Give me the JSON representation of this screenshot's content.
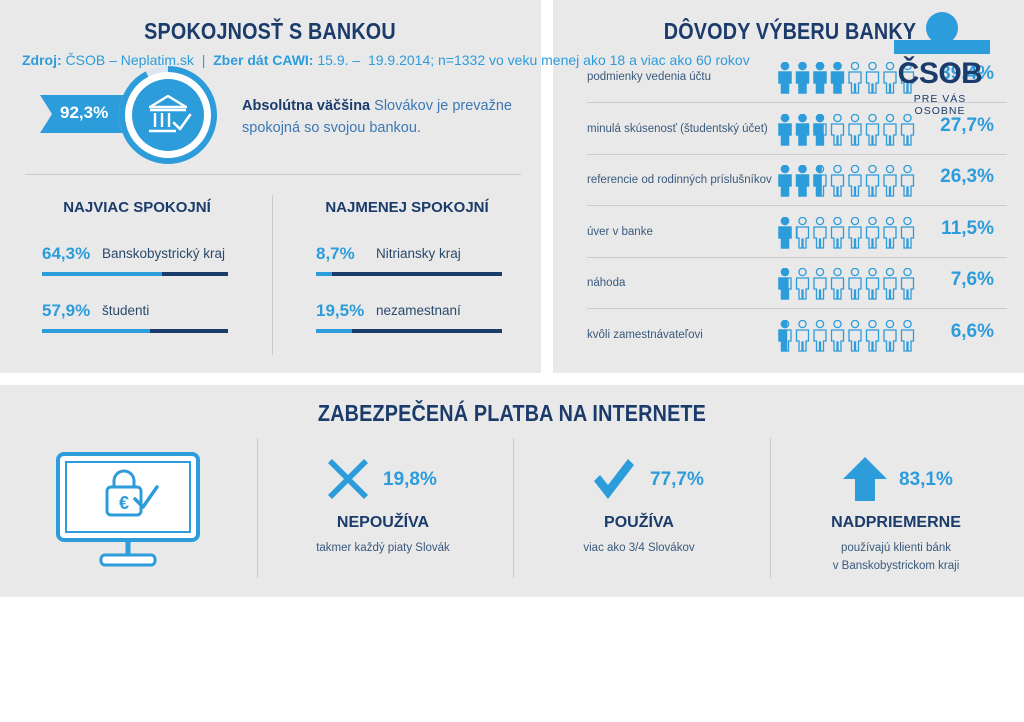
{
  "satisfaction": {
    "title": "SPOKOJNOSŤ S BANKOU",
    "overall_pct": "92,3%",
    "overall_value": 92.3,
    "desc_bold": "Absolútna väčšina",
    "desc_line1": " Slovákov je prevažne",
    "desc_line2": "spokojná so svojou bankou.",
    "most": {
      "title": "NAJVIAC SPOKOJNÍ",
      "items": [
        {
          "pct": "64,3%",
          "value": 64.3,
          "label": "Banskobystrický kraj"
        },
        {
          "pct": "57,9%",
          "value": 57.9,
          "label": "študenti"
        }
      ]
    },
    "least": {
      "title": "NAJMENEJ SPOKOJNÍ",
      "items": [
        {
          "pct": "8,7%",
          "value": 8.7,
          "label": "Nitriansky kraj"
        },
        {
          "pct": "19,5%",
          "value": 19.5,
          "label": "nezamestnaní"
        }
      ]
    }
  },
  "reasons": {
    "title": "DÔVODY VÝBERU BANKY",
    "items": [
      {
        "label": "podmienky vedenia účtu",
        "pct": "39,4%",
        "value": 39.4
      },
      {
        "label": "minulá skúsenosť (študentský účet)",
        "pct": "27,7%",
        "value": 27.7
      },
      {
        "label": "referencie od rodinných príslušníkov",
        "pct": "26,3%",
        "value": 26.3
      },
      {
        "label": "úver v banke",
        "pct": "11,5%",
        "value": 11.5
      },
      {
        "label": "náhoda",
        "pct": "7,6%",
        "value": 7.6
      },
      {
        "label": "kvôli zamestnávateľovi",
        "pct": "6,6%",
        "value": 6.6
      }
    ]
  },
  "payment": {
    "title": "ZABEZPEČENÁ PLATBA NA INTERNETE",
    "items": [
      {
        "icon": "cross-icon",
        "pct": "19,8%",
        "title": "NEPOUŽÍVA",
        "sub1": "takmer každý piaty Slovák",
        "sub2": ""
      },
      {
        "icon": "check-icon",
        "pct": "77,7%",
        "title": "POUŽÍVA",
        "sub1": "viac ako 3/4 Slovákov",
        "sub2": ""
      },
      {
        "icon": "arrow-up-icon",
        "pct": "83,1%",
        "title": "NADPRIEMERNE",
        "sub1": "používajú klienti bánk",
        "sub2": "v Banskobystrickom kraji"
      }
    ]
  },
  "footer": {
    "src_bold1": "Zdroj:",
    "src_text1": " ČSOB – Neplatim.sk  |  ",
    "src_bold2": "Zber dát CAWI:",
    "src_text2": " 15.9. –  19.9.2014; n=1332 vo veku menej ako 18 a viac ako 60 rokov",
    "logo_text": "ČSOB",
    "logo_tag": "PRE VÁS OSOBNE"
  },
  "colors": {
    "accent": "#2d9cdb",
    "navy": "#1b3b6a",
    "panel": "#e9e9ea"
  },
  "chart_data": [
    {
      "type": "bar",
      "title": "DÔVODY VÝBERU BANKY",
      "categories": [
        "podmienky vedenia účtu",
        "minulá skúsenosť (študentský účet)",
        "referencie od rodinných príslušníkov",
        "úver v banke",
        "náhoda",
        "kvôli zamestnávateľovi"
      ],
      "values": [
        39.4,
        27.7,
        26.3,
        11.5,
        7.6,
        6.6
      ],
      "unit": "%"
    },
    {
      "type": "bar",
      "title": "SPOKOJNOSŤ S BANKOU",
      "categories": [
        "Banskobystrický kraj",
        "študenti",
        "Nitriansky kraj",
        "nezamestnaní"
      ],
      "values": [
        64.3,
        57.9,
        8.7,
        19.5
      ],
      "unit": "%"
    },
    {
      "type": "table",
      "title": "ZABEZPEČENÁ PLATBA NA INTERNETE",
      "categories": [
        "NEPOUŽÍVA",
        "POUŽÍVA",
        "NADPRIEMERNE"
      ],
      "values": [
        19.8,
        77.7,
        83.1
      ],
      "unit": "%"
    }
  ]
}
